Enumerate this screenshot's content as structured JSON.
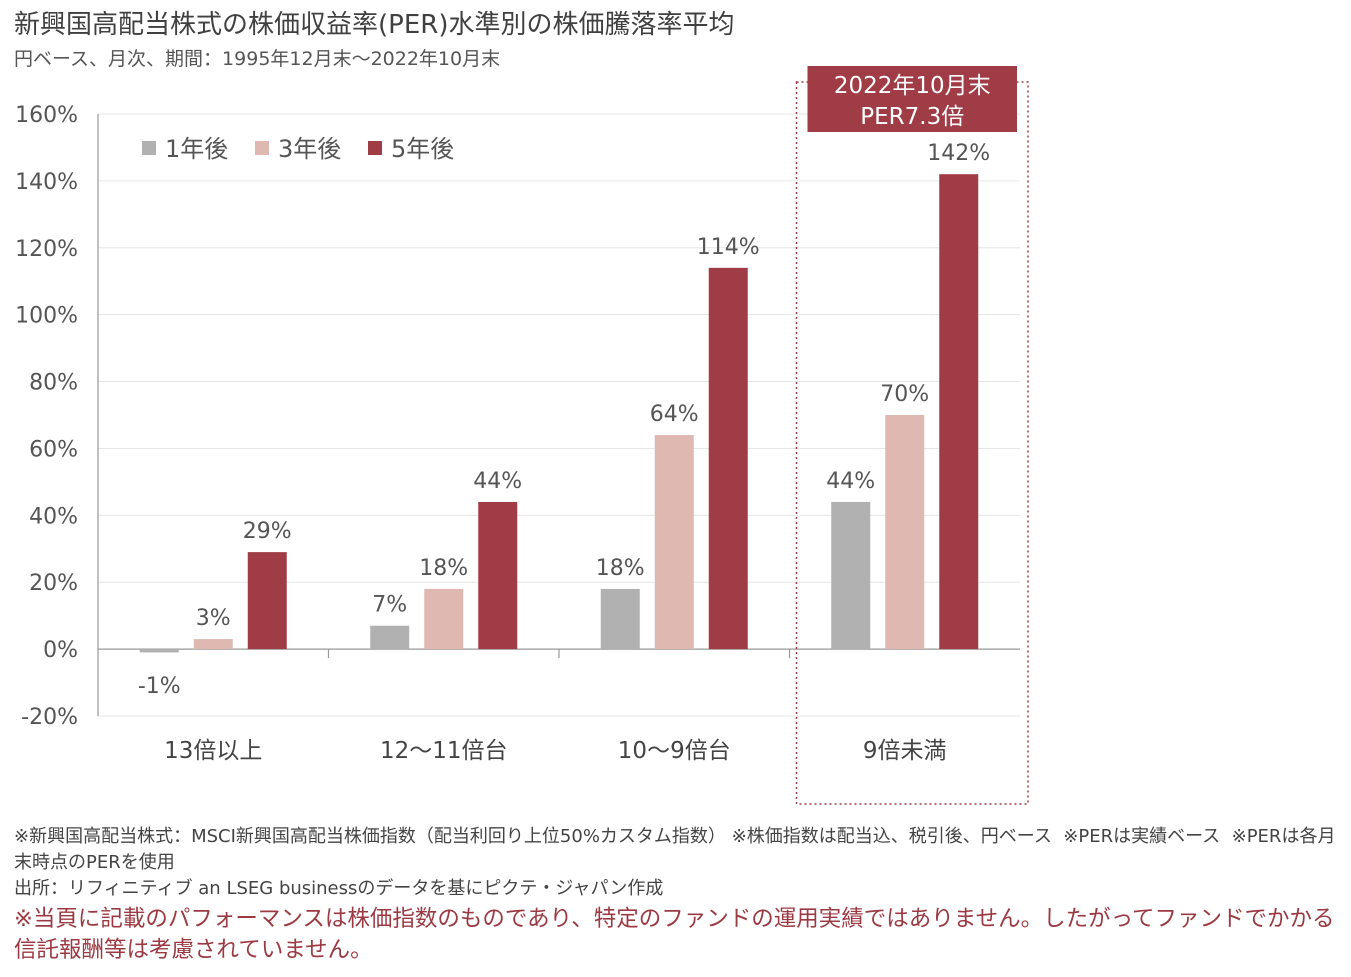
{
  "title": "新興国高配当株式の株価収益率(PER)水準別の株価騰落率平均",
  "subtitle": "円ベース、月次、期間：1995年12月末〜2022年10月末",
  "chart_data": {
    "type": "bar",
    "categories": [
      "13倍以上",
      "12〜11倍台",
      "10〜9倍台",
      "9倍未満"
    ],
    "series": [
      {
        "name": "1年後",
        "color": "#b1b1b1",
        "values": [
          -1,
          7,
          18,
          44
        ],
        "labels": [
          "-1%",
          "7%",
          "18%",
          "44%"
        ]
      },
      {
        "name": "3年後",
        "color": "#e0b8b2",
        "values": [
          3,
          18,
          64,
          70
        ],
        "labels": [
          "3%",
          "18%",
          "64%",
          "70%"
        ]
      },
      {
        "name": "5年後",
        "color": "#a03c45",
        "values": [
          29,
          44,
          114,
          142
        ],
        "labels": [
          "29%",
          "44%",
          "114%",
          "142%"
        ]
      }
    ],
    "ylim": [
      -20,
      160
    ],
    "yticks": [
      -20,
      0,
      20,
      40,
      60,
      80,
      100,
      120,
      140,
      160
    ],
    "ytick_labels": [
      "-20%",
      "0%",
      "20%",
      "40%",
      "60%",
      "80%",
      "100%",
      "120%",
      "140%",
      "160%"
    ],
    "grid": true,
    "legend_position": "top-left",
    "highlight": {
      "category": "9倍未満",
      "label_lines": [
        "2022年10月末",
        "PER7.3倍"
      ],
      "color": "#a03c45"
    }
  },
  "notes": [
    "※新興国高配当株式：MSCI新興国高配当株価指数（配当利回り上位50%カスタム指数） ※株価指数は配当込、税引後、円ベース  ※PERは実績ベース  ※PERは各月末時点のPERを使用",
    "出所：リフィニティブ an LSEG businessのデータを基にピクテ・ジャパン作成"
  ],
  "disclaimer": "※当頁に記載のパフォーマンスは株価指数のものであり、特定のファンドの運用実績ではありません。したがってファンドでかかる信託報酬等は考慮されていません。"
}
